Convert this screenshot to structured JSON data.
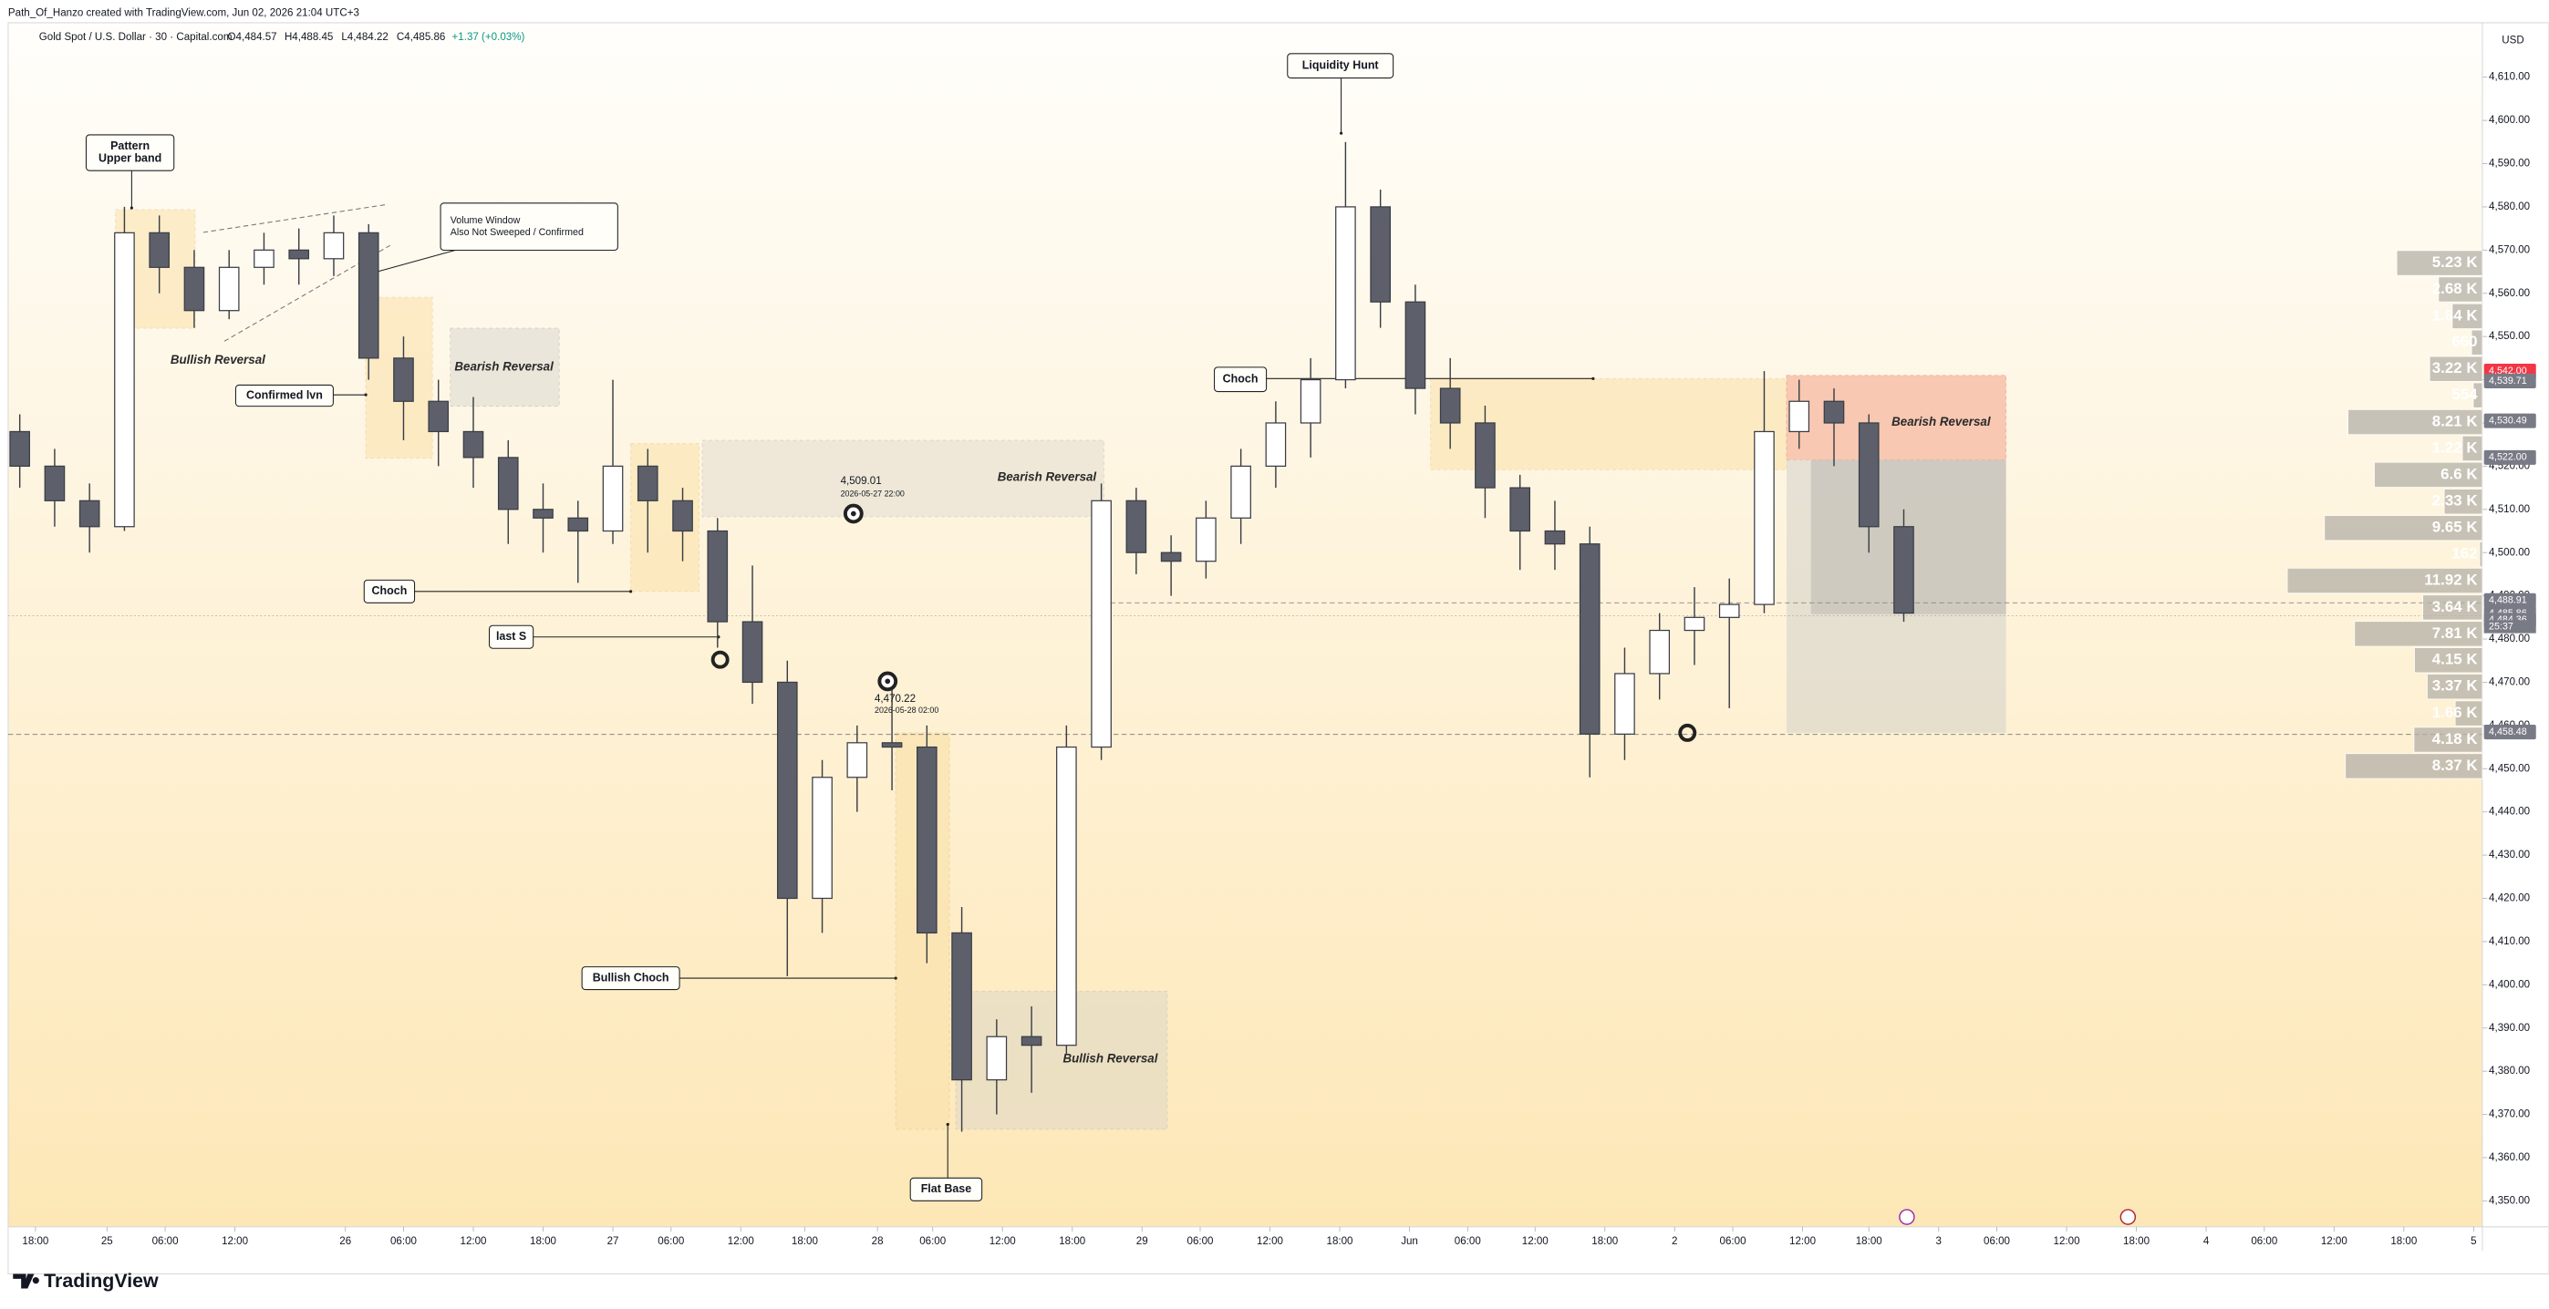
{
  "header": {
    "credit": "Path_Of_Hanzo created with TradingView.com, Jun 02, 2026 21:04 UTC+3",
    "symbol": "Gold Spot / U.S. Dollar · 30 · Capital.com",
    "open": "O4,484.57",
    "high": "H4,488.45",
    "low": "L4,484.22",
    "close": "C4,485.86",
    "change": "+1.37 (+0.03%)",
    "currency": "USD"
  },
  "chart_data": {
    "type": "candlestick",
    "x": [
      2,
      8,
      14,
      20,
      26,
      32,
      38,
      44,
      50,
      56,
      62,
      68,
      74,
      80,
      86,
      92,
      98,
      104,
      110,
      116,
      122,
      128,
      134,
      140,
      146,
      152,
      158,
      164,
      170,
      176,
      182,
      188,
      194,
      200,
      206,
      212,
      218,
      224,
      230,
      236,
      242,
      248,
      254,
      260,
      266,
      272,
      278,
      284,
      290,
      296,
      302,
      308,
      314,
      320,
      326
    ],
    "open": [
      4528,
      4520,
      4512,
      4506,
      4574,
      4566,
      4556,
      4566,
      4570,
      4568,
      4574,
      4545,
      4535,
      4528,
      4522,
      4510,
      4508,
      4505,
      4520,
      4512,
      4505,
      4484,
      4470,
      4420,
      4448,
      4456,
      4455,
      4412,
      4378,
      4388,
      4386,
      4455,
      4512,
      4500,
      4498,
      4508,
      4520,
      4530,
      4540,
      4580,
      4558,
      4538,
      4530,
      4515,
      4505,
      4502,
      4458,
      4472,
      4482,
      4485,
      4488,
      4528,
      4535,
      4530,
      4506
    ],
    "high": [
      4532,
      4524,
      4516,
      4580,
      4578,
      4570,
      4570,
      4574,
      4575,
      4578,
      4576,
      4550,
      4540,
      4536,
      4526,
      4516,
      4512,
      4540,
      4524,
      4515,
      4508,
      4497,
      4475,
      4452,
      4460,
      4470,
      4460,
      4418,
      4392,
      4395,
      4460,
      4516,
      4515,
      4504,
      4512,
      4524,
      4535,
      4545,
      4595,
      4584,
      4562,
      4545,
      4534,
      4518,
      4512,
      4506,
      4478,
      4486,
      4492,
      4494,
      4542,
      4540,
      4538,
      4532,
      4510
    ],
    "low": [
      4515,
      4506,
      4500,
      4505,
      4560,
      4552,
      4554,
      4562,
      4562,
      4564,
      4540,
      4526,
      4520,
      4515,
      4502,
      4500,
      4493,
      4502,
      4500,
      4498,
      4478,
      4465,
      4402,
      4412,
      4440,
      4445,
      4405,
      4366,
      4370,
      4375,
      4384,
      4452,
      4495,
      4490,
      4494,
      4502,
      4515,
      4522,
      4538,
      4552,
      4532,
      4524,
      4508,
      4496,
      4496,
      4448,
      4452,
      4466,
      4474,
      4464,
      4486,
      4524,
      4520,
      4500,
      4484
    ],
    "close": [
      4520,
      4512,
      4506,
      4574,
      4566,
      4556,
      4566,
      4570,
      4568,
      4574,
      4545,
      4535,
      4528,
      4522,
      4510,
      4508,
      4505,
      4520,
      4512,
      4505,
      4484,
      4470,
      4420,
      4448,
      4456,
      4455,
      4412,
      4378,
      4388,
      4386,
      4455,
      4512,
      4500,
      4498,
      4508,
      4520,
      4530,
      4540,
      4580,
      4558,
      4538,
      4530,
      4515,
      4505,
      4502,
      4458,
      4472,
      4482,
      4485,
      4488,
      4528,
      4535,
      4530,
      4506,
      4486
    ],
    "up_color": "#ffffff",
    "down_color": "#5d606b",
    "wick_color": "#3a3d45",
    "xlim": [
      0,
      425.5
    ],
    "xticks": [
      {
        "value": 4.7,
        "label": "18:00"
      },
      {
        "value": 17,
        "label": "25"
      },
      {
        "value": 27,
        "label": "06:00"
      },
      {
        "value": 39,
        "label": "12:00"
      },
      {
        "value": 58,
        "label": "26"
      },
      {
        "value": 68,
        "label": "06:00"
      },
      {
        "value": 80,
        "label": "12:00"
      },
      {
        "value": 92,
        "label": "18:00"
      },
      {
        "value": 104,
        "label": "27"
      },
      {
        "value": 114,
        "label": "06:00"
      },
      {
        "value": 126,
        "label": "12:00"
      },
      {
        "value": 137,
        "label": "18:00"
      },
      {
        "value": 149.5,
        "label": "28"
      },
      {
        "value": 159,
        "label": "06:00"
      },
      {
        "value": 171,
        "label": "12:00"
      },
      {
        "value": 183,
        "label": "18:00"
      },
      {
        "value": 195,
        "label": "29"
      },
      {
        "value": 205,
        "label": "06:00"
      },
      {
        "value": 217,
        "label": "12:00"
      },
      {
        "value": 229,
        "label": "18:00"
      },
      {
        "value": 241,
        "label": "Jun"
      },
      {
        "value": 251,
        "label": "06:00"
      },
      {
        "value": 262.6,
        "label": "12:00"
      },
      {
        "value": 274.6,
        "label": "18:00"
      },
      {
        "value": 286.6,
        "label": "2"
      },
      {
        "value": 296.6,
        "label": "06:00"
      },
      {
        "value": 308.6,
        "label": "12:00"
      },
      {
        "value": 320,
        "label": "18:00"
      },
      {
        "value": 332,
        "label": "3"
      },
      {
        "value": 342,
        "label": "06:00"
      },
      {
        "value": 354,
        "label": "12:00"
      },
      {
        "value": 366,
        "label": "18:00"
      },
      {
        "value": 378,
        "label": "4"
      },
      {
        "value": 388,
        "label": "06:00"
      },
      {
        "value": 400,
        "label": "12:00"
      },
      {
        "value": 412,
        "label": "18:00"
      },
      {
        "value": 424,
        "label": "5"
      }
    ],
    "ylim": [
      4344,
      4622.6
    ],
    "yticks": [
      {
        "value": 4350,
        "label": "4,350.00"
      },
      {
        "value": 4360,
        "label": "4,360.00"
      },
      {
        "value": 4370,
        "label": "4,370.00"
      },
      {
        "value": 4380,
        "label": "4,380.00"
      },
      {
        "value": 4390,
        "label": "4,390.00"
      },
      {
        "value": 4400,
        "label": "4,400.00"
      },
      {
        "value": 4410,
        "label": "4,410.00"
      },
      {
        "value": 4420,
        "label": "4,420.00"
      },
      {
        "value": 4430,
        "label": "4,430.00"
      },
      {
        "value": 4440,
        "label": "4,440.00"
      },
      {
        "value": 4450,
        "label": "4,450.00"
      },
      {
        "value": 4460,
        "label": "4,460.00"
      },
      {
        "value": 4470,
        "label": "4,470.00"
      },
      {
        "value": 4480,
        "label": "4,480.00"
      },
      {
        "value": 4490,
        "label": "4,490.00"
      },
      {
        "value": 4500,
        "label": "4,500.00"
      },
      {
        "value": 4510,
        "label": "4,510.00"
      },
      {
        "value": 4520,
        "label": "4,520.00"
      },
      {
        "value": 4530,
        "label": "4,530.00"
      },
      {
        "value": 4540,
        "label": "4,540.00"
      },
      {
        "value": 4550,
        "label": "4,550.00"
      },
      {
        "value": 4560,
        "label": "4,560.00"
      },
      {
        "value": 4570,
        "label": "4,570.00"
      },
      {
        "value": 4580,
        "label": "4,580.00"
      },
      {
        "value": 4590,
        "label": "4,590.00"
      },
      {
        "value": 4600,
        "label": "4,600.00"
      },
      {
        "value": 4610,
        "label": "4,610.00"
      }
    ],
    "grid": false,
    "price_badges": [
      {
        "value": 4542.0,
        "label": "4,542.00",
        "color": "#f23645"
      },
      {
        "value": 4539.71,
        "label": "4,539.71",
        "color": "#787b86"
      },
      {
        "value": 4530.49,
        "label": "4,530.49",
        "color": "#787b86"
      },
      {
        "value": 4522.0,
        "label": "4,522.00",
        "color": "#787b86"
      },
      {
        "value": 4488.91,
        "label": "4,488.91",
        "color": "#787b86"
      },
      {
        "value": 4485.86,
        "label": "4,485.86",
        "color": "#787b86"
      },
      {
        "value": 4484.36,
        "label": "4,484.36",
        "color": "#787b86"
      },
      {
        "value": 4458.48,
        "label": "4,458.48",
        "color": "#787b86"
      }
    ],
    "countdown": "25:37",
    "volume_profile": {
      "color": "#b5b1a8",
      "prices": [
        4567.0,
        4560.9,
        4554.7,
        4548.6,
        4542.5,
        4536.4,
        4530.2,
        4524.1,
        4518.0,
        4511.8,
        4505.7,
        4499.6,
        4493.5,
        4487.3,
        4481.2,
        4475.1,
        4469.0,
        4462.8,
        4456.7,
        4450.6
      ],
      "values": [
        5230,
        2680,
        1840,
        660,
        3220,
        554,
        8210,
        1220,
        6600,
        2330,
        9650,
        162,
        11920,
        3640,
        7810,
        4150,
        3370,
        1660,
        4180,
        8370
      ],
      "value_labels": [
        "5.23 K",
        "2.68 K",
        "1.84 K",
        "660",
        "3.22 K",
        "554",
        "8.21 K",
        "1.22 K",
        "6.6 K",
        "2.33 K",
        "9.65 K",
        "162",
        "11.92 K",
        "3.64 K",
        "7.81 K",
        "4.15 K",
        "3.37 K",
        "1.66 K",
        "4.18 K",
        "8.37 K"
      ]
    },
    "annotations": [
      {
        "lines": [
          "Pattern",
          "Upper band"
        ]
      },
      {
        "lines": [
          "Volume Window",
          "Also Not Sweeped / Confirmed"
        ]
      },
      {
        "lines": [
          "Confirmed lvn"
        ]
      },
      {
        "lines": [
          "Liquidity Hunt"
        ]
      },
      {
        "lines": [
          "Choch"
        ]
      },
      {
        "lines": [
          "Choch"
        ]
      },
      {
        "lines": [
          "last S"
        ]
      },
      {
        "lines": [
          "Bullish  Choch"
        ]
      },
      {
        "lines": [
          "Flat Base"
        ]
      }
    ],
    "zone_labels": [
      "Bullish Reversal",
      "Bearish Reversal",
      "Bearish Reversal",
      "Bearish Reversal",
      "Bullish Reversal"
    ],
    "pivots": [
      {
        "value": 4509.01,
        "label": "4,509.01",
        "time": "2026-05-27 22:00"
      },
      {
        "value": 4470.22,
        "label": "4,470.22",
        "time": "2026-05-28 02:00"
      }
    ]
  },
  "footer": {
    "brand": "TradingView"
  }
}
